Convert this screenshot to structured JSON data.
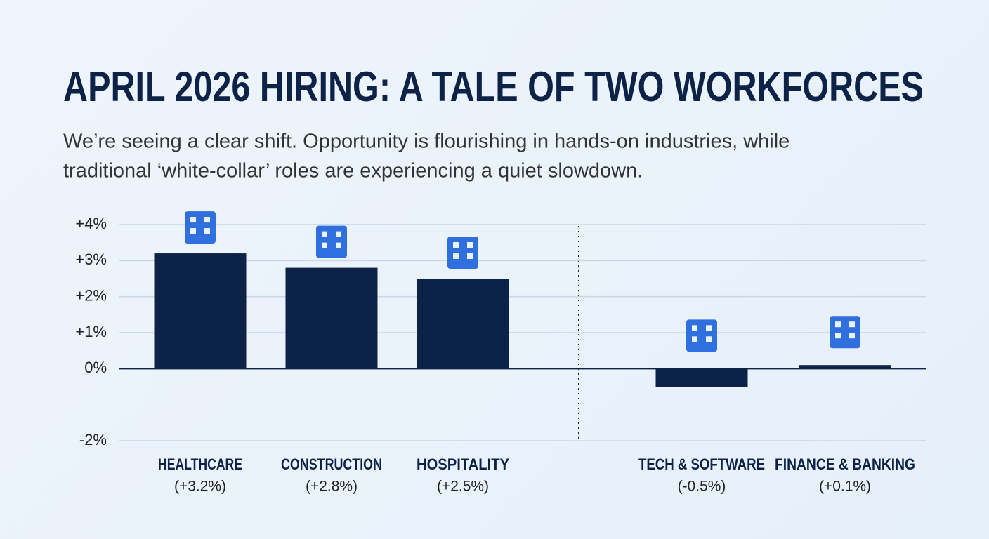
{
  "chart_data": {
    "type": "bar",
    "title": "APRIL 2026 HIRING: A TALE OF TWO WORKFORCES",
    "subtitle": [
      "We’re seeing a clear shift. Opportunity is flourishing in hands-on industries, while",
      "traditional ‘white-collar’ roles are experiencing a quiet slowdown."
    ],
    "categories": [
      "HEALTHCARE",
      "CONSTRUCTION",
      "HOSPITALITY",
      "TECH & SOFTWARE",
      "FINANCE & BANKING"
    ],
    "values": [
      3.2,
      2.8,
      2.5,
      -0.5,
      0.1
    ],
    "value_labels": [
      "(+3.2%)",
      "(+2.8%)",
      "(+2.5%)",
      "(-0.5%)",
      "(+0.1%)"
    ],
    "color": "#0c2246",
    "ylim": [
      -2,
      4
    ],
    "yticks": [
      {
        "value": 4,
        "label": "+4%"
      },
      {
        "value": 3,
        "label": "+3%"
      },
      {
        "value": 2,
        "label": "+2%"
      },
      {
        "value": 1,
        "label": "+1%"
      },
      {
        "value": 0,
        "label": "0%"
      },
      {
        "value": -2,
        "label": "-2%"
      }
    ],
    "grid": true
  }
}
